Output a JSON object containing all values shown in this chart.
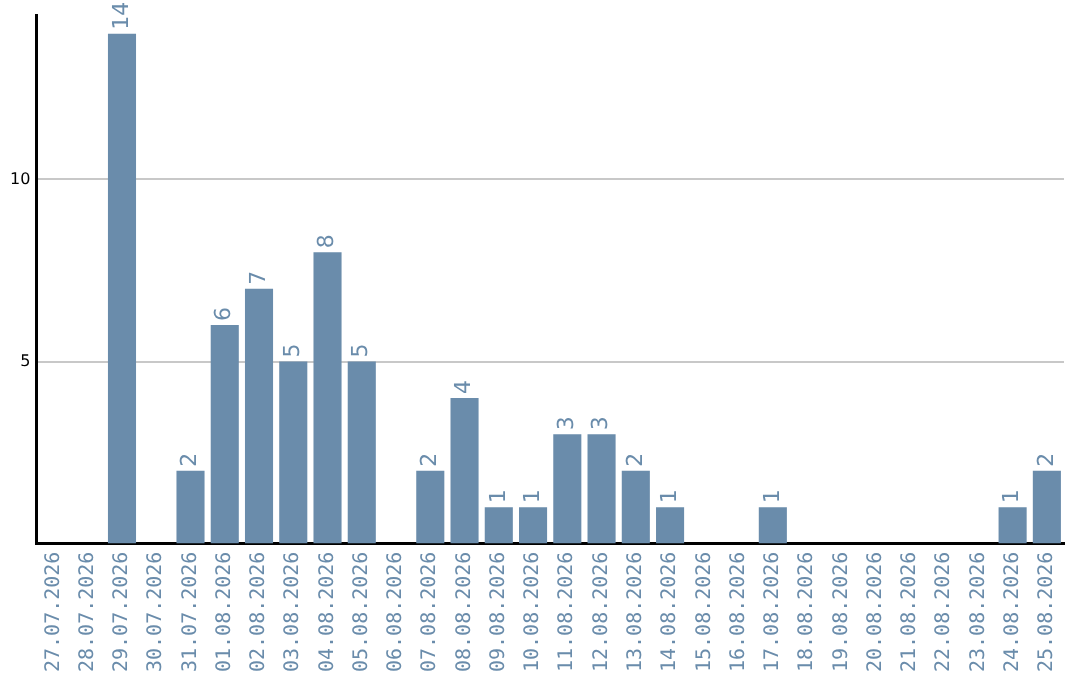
{
  "chart_data": {
    "type": "bar",
    "categories": [
      "27.07.2026",
      "28.07.2026",
      "29.07.2026",
      "30.07.2026",
      "31.07.2026",
      "01.08.2026",
      "02.08.2026",
      "03.08.2026",
      "04.08.2026",
      "05.08.2026",
      "06.08.2026",
      "07.08.2026",
      "08.08.2026",
      "09.08.2026",
      "10.08.2026",
      "11.08.2026",
      "12.08.2026",
      "13.08.2026",
      "14.08.2026",
      "15.08.2026",
      "16.08.2026",
      "17.08.2026",
      "18.08.2026",
      "19.08.2026",
      "20.08.2026",
      "21.08.2026",
      "22.08.2026",
      "23.08.2026",
      "24.08.2026",
      "25.08.2026"
    ],
    "values": [
      null,
      null,
      14,
      null,
      2,
      6,
      7,
      5,
      8,
      5,
      null,
      2,
      4,
      1,
      1,
      3,
      3,
      2,
      1,
      null,
      null,
      1,
      null,
      null,
      null,
      null,
      null,
      null,
      1,
      2
    ],
    "color": "#6a8cab",
    "ylim": [
      0,
      14.5
    ],
    "yticks": [
      5,
      10
    ],
    "grid": "y",
    "data_labels": true
  }
}
